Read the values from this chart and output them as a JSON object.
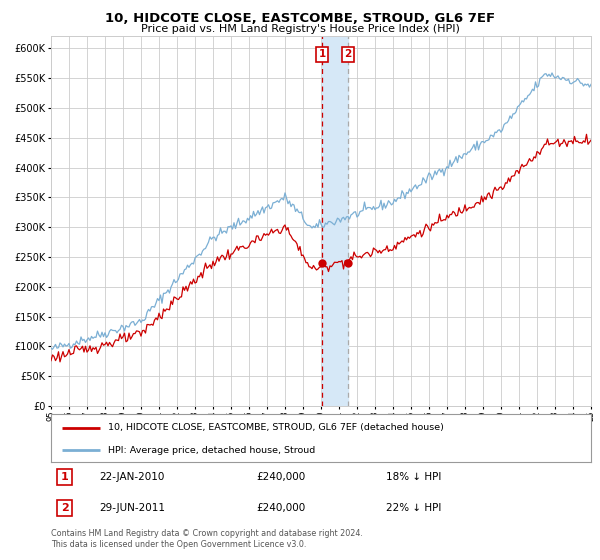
{
  "title": "10, HIDCOTE CLOSE, EASTCOMBE, STROUD, GL6 7EF",
  "subtitle": "Price paid vs. HM Land Registry's House Price Index (HPI)",
  "legend_property": "10, HIDCOTE CLOSE, EASTCOMBE, STROUD, GL6 7EF (detached house)",
  "legend_hpi": "HPI: Average price, detached house, Stroud",
  "transaction1_date": "22-JAN-2010",
  "transaction1_price": 240000,
  "transaction1_pct": "18% ↓ HPI",
  "transaction2_date": "29-JUN-2011",
  "transaction2_price": 240000,
  "transaction2_pct": "22% ↓ HPI",
  "footer": "Contains HM Land Registry data © Crown copyright and database right 2024.\nThis data is licensed under the Open Government Licence v3.0.",
  "ylim": [
    0,
    620000
  ],
  "yticks": [
    0,
    50000,
    100000,
    150000,
    200000,
    250000,
    300000,
    350000,
    400000,
    450000,
    500000,
    550000,
    600000
  ],
  "property_color": "#cc0000",
  "hpi_color": "#7bafd4",
  "marker_color": "#cc0000",
  "vline_color": "#cc0000",
  "vband_color": "#d6e8f7",
  "grid_color": "#cccccc",
  "background_color": "#ffffff",
  "trans1_x": 2010.055,
  "trans2_x": 2011.495,
  "xlim_start": 1995,
  "xlim_end": 2025
}
